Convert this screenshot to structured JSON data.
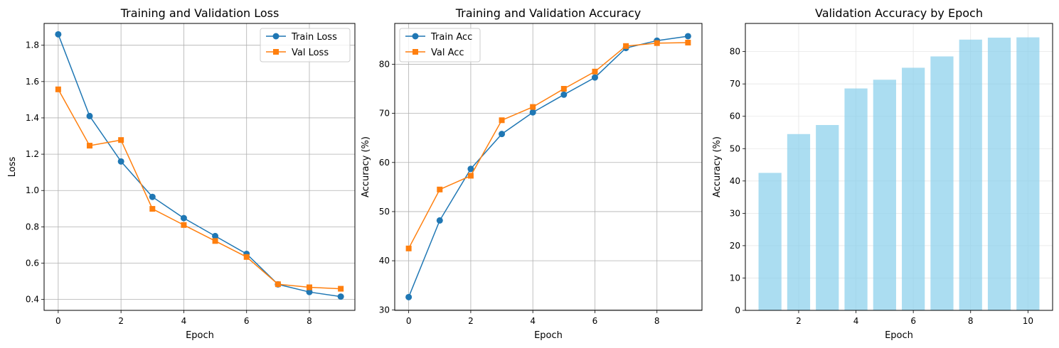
{
  "figure": {
    "panels": [
      {
        "title": "Training and Validation Loss",
        "xlabel": "Epoch",
        "ylabel": "Loss",
        "legend": [
          "Train Loss",
          "Val Loss"
        ],
        "xticks": [
          "0",
          "2",
          "4",
          "6",
          "8"
        ],
        "yticks": [
          "0.4",
          "0.6",
          "0.8",
          "1.0",
          "1.2",
          "1.4",
          "1.6",
          "1.8"
        ]
      },
      {
        "title": "Training and Validation Accuracy",
        "xlabel": "Epoch",
        "ylabel": "Accuracy (%)",
        "legend": [
          "Train Acc",
          "Val Acc"
        ],
        "xticks": [
          "0",
          "2",
          "4",
          "6",
          "8"
        ],
        "yticks": [
          "30",
          "40",
          "50",
          "60",
          "70",
          "80"
        ]
      },
      {
        "title": "Validation Accuracy by Epoch",
        "xlabel": "Epoch",
        "ylabel": "Accuracy (%)",
        "xticks": [
          "2",
          "4",
          "6",
          "8",
          "10"
        ],
        "yticks": [
          "0",
          "10",
          "20",
          "30",
          "40",
          "50",
          "60",
          "70",
          "80"
        ]
      }
    ]
  },
  "chart_data": [
    {
      "type": "line",
      "title": "Training and Validation Loss",
      "xlabel": "Epoch",
      "ylabel": "Loss",
      "x": [
        0,
        1,
        2,
        3,
        4,
        5,
        6,
        7,
        8,
        9
      ],
      "xlim": [
        -0.45,
        9.45
      ],
      "ylim": [
        0.34,
        1.92
      ],
      "grid": true,
      "legend_position": "top-right",
      "series": [
        {
          "name": "Train Loss",
          "color": "#1f77b4",
          "marker": "circle",
          "values": [
            1.86,
            1.41,
            1.16,
            0.965,
            0.848,
            0.749,
            0.651,
            0.483,
            0.441,
            0.416
          ]
        },
        {
          "name": "Val Loss",
          "color": "#ff7f0e",
          "marker": "square",
          "values": [
            1.557,
            1.247,
            1.278,
            0.899,
            0.81,
            0.722,
            0.634,
            0.484,
            0.467,
            0.459
          ]
        }
      ]
    },
    {
      "type": "line",
      "title": "Training and Validation Accuracy",
      "xlabel": "Epoch",
      "ylabel": "Accuracy (%)",
      "x": [
        0,
        1,
        2,
        3,
        4,
        5,
        6,
        7,
        8,
        9
      ],
      "xlim": [
        -0.45,
        9.45
      ],
      "ylim": [
        29.9,
        88.3
      ],
      "grid": true,
      "legend_position": "top-left",
      "series": [
        {
          "name": "Train Acc",
          "color": "#1f77b4",
          "marker": "circle",
          "values": [
            32.6,
            48.2,
            58.7,
            65.8,
            70.2,
            73.8,
            77.3,
            83.3,
            84.8,
            85.7
          ]
        },
        {
          "name": "Val Acc",
          "color": "#ff7f0e",
          "marker": "square",
          "values": [
            42.5,
            54.5,
            57.3,
            68.6,
            71.3,
            75.0,
            78.5,
            83.7,
            84.3,
            84.4
          ]
        }
      ]
    },
    {
      "type": "bar",
      "title": "Validation Accuracy by Epoch",
      "xlabel": "Epoch",
      "ylabel": "Accuracy (%)",
      "categories": [
        1,
        2,
        3,
        4,
        5,
        6,
        7,
        8,
        9,
        10
      ],
      "values": [
        42.5,
        54.5,
        57.3,
        68.6,
        71.3,
        75.0,
        78.5,
        83.7,
        84.3,
        84.4
      ],
      "color": "#87ceeb",
      "opacity": 0.7,
      "xlim": [
        0.14,
        10.86
      ],
      "ylim": [
        0,
        88.7
      ],
      "grid": true
    }
  ]
}
